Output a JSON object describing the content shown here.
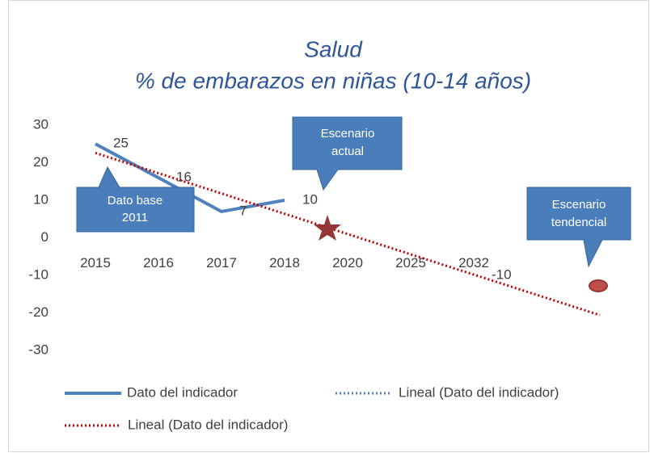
{
  "chart_data": {
    "type": "line",
    "title": [
      "Salud",
      "% de embarazos en niñas (10-14 años)"
    ],
    "categories": [
      "2015",
      "2016",
      "2017",
      "2018",
      "2020",
      "2025",
      "2032",
      null,
      null
    ],
    "series": [
      {
        "name": "Dato del indicador",
        "color": "#4f81bd",
        "values": [
          25,
          16,
          7,
          10,
          null,
          null,
          -10,
          null,
          null
        ]
      }
    ],
    "trendlines": [
      {
        "name": "Lineal (Dato del indicador)",
        "color": "#4f81bd"
      },
      {
        "name": "Lineal (Dato del indicador)",
        "color": "#c00000"
      }
    ],
    "ylim": [
      -30,
      30
    ],
    "yticks": [
      -30,
      -20,
      -10,
      0,
      10,
      20,
      30
    ],
    "annotations": [
      [
        "Dato base",
        "2011"
      ],
      [
        "Escenario",
        "actual"
      ],
      [
        "Escenario",
        "tendencial"
      ]
    ]
  }
}
